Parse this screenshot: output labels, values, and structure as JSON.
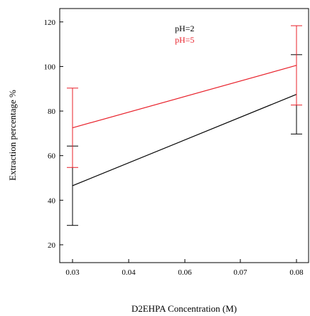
{
  "chart_data": {
    "type": "line",
    "title": "",
    "xlabel": "D2EHPA Concentration (M)",
    "ylabel": "Extraction percentage %",
    "x_ticks": [
      "0.03",
      "0.04",
      "0.06",
      "0.07",
      "0.08"
    ],
    "y_ticks": [
      "20",
      "40",
      "60",
      "80",
      "100",
      "120"
    ],
    "ylim": [
      12,
      126
    ],
    "grid": false,
    "legend_position": "top-center",
    "x": [
      0.03,
      0.08
    ],
    "series": [
      {
        "name": "pH=2",
        "color": "#000000",
        "values": [
          46.5,
          87.5
        ],
        "error": [
          17.8,
          17.8
        ]
      },
      {
        "name": "pH=5",
        "color": "#e8202a",
        "values": [
          72.5,
          100.5
        ],
        "error": [
          17.8,
          17.8
        ]
      }
    ]
  }
}
